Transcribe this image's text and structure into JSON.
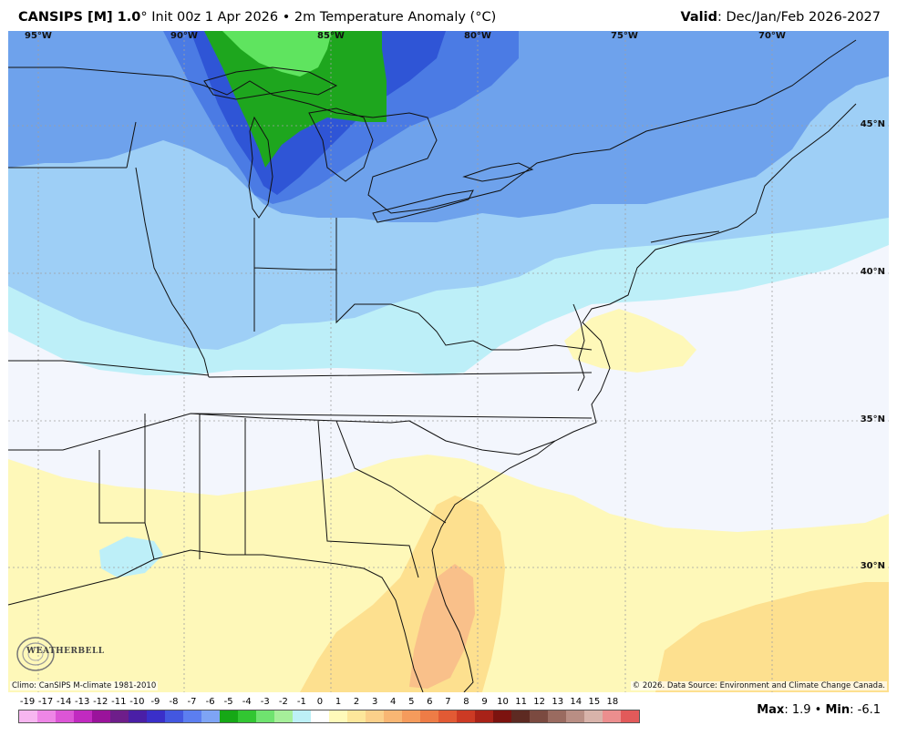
{
  "header": {
    "model": "CANSIPS [M] 1.0",
    "degree_mark": "°",
    "init": "Init 00z 1 Apr 2026",
    "bullet": "•",
    "variable": "2m Temperature Anomaly (°C)",
    "valid_label": "Valid",
    "valid_value": ": Dec/Jan/Feb 2026-2027"
  },
  "map": {
    "longitudes": [
      "95°W",
      "90°W",
      "85°W",
      "80°W",
      "75°W",
      "70°W"
    ],
    "latitudes": [
      "45°N",
      "40°N",
      "35°N",
      "30°N"
    ],
    "climo_note": "Climo: CanSIPS M-climate 1981-2010",
    "copyright": "© 2026. Data Source: Environment and Climate Change Canada.",
    "logo_text": "WEATHERBELL"
  },
  "legend": {
    "labels": [
      "-19",
      "-17",
      "-14",
      "-13",
      "-12",
      "-11",
      "-10",
      "-9",
      "-8",
      "-7",
      "-6",
      "-5",
      "-4",
      "-3",
      "-2",
      "-1",
      "0",
      "1",
      "2",
      "3",
      "4",
      "5",
      "6",
      "7",
      "8",
      "9",
      "10",
      "11",
      "12",
      "13",
      "14",
      "15",
      "18"
    ],
    "colors": [
      "#f7b6f0",
      "#ee86e6",
      "#dc55d6",
      "#c12ac0",
      "#9a139b",
      "#6e1e8a",
      "#4a1fa6",
      "#3a2fc9",
      "#4357e0",
      "#5c7ef0",
      "#7ea4f5",
      "#16a816",
      "#32c632",
      "#6fe36f",
      "#a6ef9a",
      "#bdf0f7",
      "#ffffff",
      "#fffaba",
      "#fde79b",
      "#fbd08a",
      "#f8b673",
      "#f59b5c",
      "#ee7c46",
      "#e25a34",
      "#cc3a24",
      "#a82218",
      "#7c130f",
      "#5d2a22",
      "#7b4a40",
      "#9a6b60",
      "#b98e84",
      "#d8b3aa",
      "#ec8e8e",
      "#e25a5a"
    ],
    "max_label": "Max",
    "max_value": ": 1.9",
    "sep": "•",
    "min_label": "Min",
    "min_value": ": -6.1"
  }
}
